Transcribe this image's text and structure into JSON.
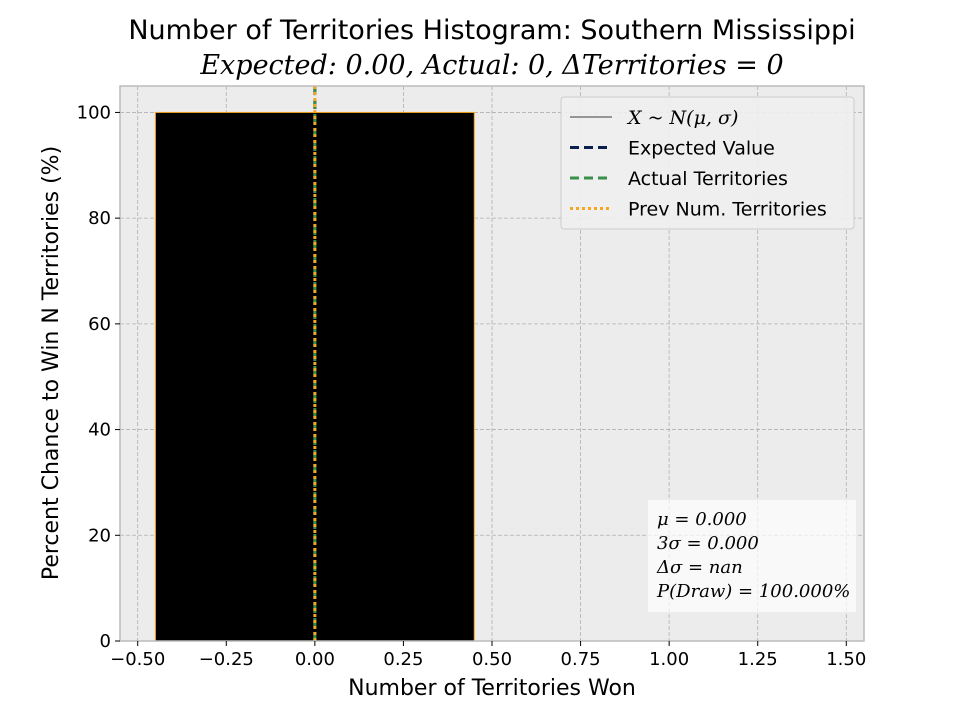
{
  "chart_data": {
    "type": "bar",
    "title": "Number of Territories Histogram: Southern Mississippi",
    "subtitle": "Expected: 0.00, Actual: 0, ΔTerritories = 0",
    "xlabel": "Number of Territories Won",
    "ylabel": "Percent Chance to Win N Territories (%)",
    "xlim": [
      -0.55,
      1.55
    ],
    "ylim": [
      0,
      105
    ],
    "grid": true,
    "x_ticks": [
      "−0.50",
      "−0.25",
      "0.00",
      "0.25",
      "0.50",
      "0.75",
      "1.00",
      "1.25",
      "1.50"
    ],
    "x_tick_values": [
      -0.5,
      -0.25,
      0,
      0.25,
      0.5,
      0.75,
      1.0,
      1.25,
      1.5
    ],
    "y_ticks": [
      "0",
      "20",
      "40",
      "60",
      "80",
      "100"
    ],
    "y_tick_values": [
      0,
      20,
      40,
      60,
      80,
      100
    ],
    "bars": [
      {
        "x": 0,
        "value": 100,
        "width": 0.9,
        "color": "#000000",
        "edge_color": "#f5a623"
      }
    ],
    "vlines": [
      {
        "name": "Expected Value",
        "x": 0,
        "color": "#0b1f4d",
        "style": "dashed"
      },
      {
        "name": "Actual Territories",
        "x": 0,
        "color": "#3a8f4a",
        "style": "dashed"
      },
      {
        "name": "Prev Num. Territories",
        "x": 0,
        "color": "#f5a623",
        "style": "dotted"
      }
    ],
    "legend": {
      "position": "top-right",
      "entries": [
        {
          "label": "X ~ N(μ, σ)",
          "color": "#000000",
          "style": "solid"
        },
        {
          "label": "Expected Value",
          "color": "#0b1f4d",
          "style": "dashed"
        },
        {
          "label": "Actual Territories",
          "color": "#3a8f4a",
          "style": "dashed"
        },
        {
          "label": "Prev Num. Territories",
          "color": "#f5a623",
          "style": "dotted"
        }
      ]
    },
    "stats_box": {
      "position": "bottom-right",
      "lines": [
        "μ = 0.000",
        "3σ = 0.000",
        "Δσ = nan",
        "P(Draw) = 100.000%"
      ]
    },
    "colors": {
      "plot_background": "#ececec",
      "grid": "#b0b0b0"
    }
  }
}
